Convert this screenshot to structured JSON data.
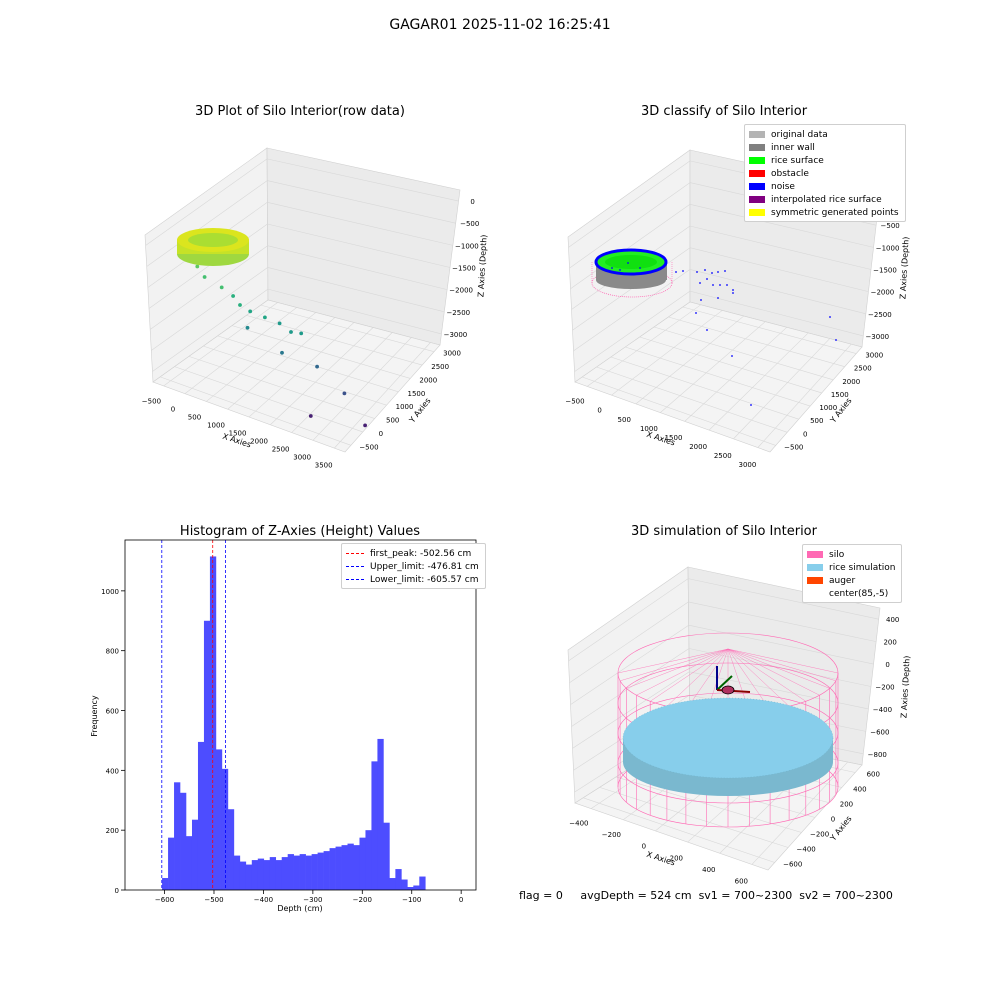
{
  "figure_title": "GAGAR01 2025-11-02 16:25:41",
  "footer": {
    "flag": "flag = 0",
    "avg_depth": "avgDepth = 524 cm",
    "sv1": "sv1 = 700~2300",
    "sv2": "sv2 = 700~2300"
  },
  "chart_data": [
    {
      "type": "scatter",
      "title": "3D Plot of Silo Interior(row data)",
      "xlabel": "X Axies",
      "ylabel": "Y Axies",
      "zlabel": "Z Axies (Depth)",
      "x_ticks": [
        "−500",
        "0",
        "500",
        "1000",
        "1500",
        "2000",
        "2500",
        "3000",
        "3500"
      ],
      "y_ticks": [
        "−500",
        "0",
        "500",
        "1000",
        "1500",
        "2000",
        "2500",
        "3000"
      ],
      "z_ticks": [
        "0",
        "−500",
        "−1000",
        "−1500",
        "−2000",
        "−2500",
        "−3000"
      ],
      "points": [
        [
          250,
          2750,
          -600
        ],
        [
          400,
          2700,
          -800
        ],
        [
          700,
          2400,
          -900
        ],
        [
          900,
          2200,
          -1000
        ],
        [
          1000,
          2000,
          -1100
        ],
        [
          1200,
          1900,
          -1200
        ],
        [
          1500,
          1800,
          -1300
        ],
        [
          1800,
          1700,
          -1400
        ],
        [
          2000,
          1500,
          -1500
        ],
        [
          2200,
          1400,
          -1500
        ],
        [
          1300,
          2500,
          -1800
        ],
        [
          1800,
          1500,
          -1900
        ],
        [
          2500,
          1200,
          -2100
        ],
        [
          3000,
          800,
          -2500
        ],
        [
          2200,
          600,
          -2800
        ],
        [
          3300,
          200,
          -2900
        ]
      ]
    },
    {
      "type": "scatter",
      "title": "3D classify of Silo Interior",
      "xlabel": "X Axies",
      "ylabel": "Y Axies",
      "zlabel": "Z Axies (Depth)",
      "x_ticks": [
        "−500",
        "0",
        "500",
        "1000",
        "1500",
        "2000",
        "2500",
        "3000"
      ],
      "y_ticks": [
        "−500",
        "0",
        "500",
        "1000",
        "1500",
        "2000",
        "2500",
        "3000"
      ],
      "z_ticks": [
        "0",
        "−500",
        "−1000",
        "−1500",
        "−2000",
        "−2500",
        "−3000"
      ],
      "legend": [
        {
          "label": "original data",
          "color": "#b4b4b4"
        },
        {
          "label": "inner wall",
          "color": "#808080"
        },
        {
          "label": "rice surface",
          "color": "#00ff00"
        },
        {
          "label": "obstacle",
          "color": "#ff0000"
        },
        {
          "label": "noise",
          "color": "#0000ff"
        },
        {
          "label": "interpolated rice surface",
          "color": "#800080"
        },
        {
          "label": "symmetric generated points",
          "color": "#ffff00"
        }
      ]
    },
    {
      "type": "bar",
      "title": "Histogram of Z-Axies (Height) Values",
      "xlabel": "Depth (cm)",
      "ylabel": "Frequency",
      "xlim": [
        -680,
        30
      ],
      "ylim": [
        0,
        1170
      ],
      "x_ticks": [
        "−600",
        "−500",
        "−400",
        "−300",
        "−200",
        "−100",
        "0"
      ],
      "y_ticks": [
        "0",
        "200",
        "400",
        "600",
        "800",
        "1000"
      ],
      "bin_start": -605,
      "bin_width": 12.1,
      "values": [
        40,
        175,
        360,
        325,
        180,
        235,
        495,
        900,
        1115,
        470,
        405,
        270,
        115,
        95,
        85,
        100,
        105,
        100,
        110,
        100,
        110,
        120,
        115,
        120,
        115,
        120,
        125,
        130,
        140,
        145,
        150,
        155,
        150,
        175,
        200,
        430,
        505,
        225,
        40,
        70,
        35,
        10,
        15,
        45
      ],
      "lines": [
        {
          "label": "first_peak: -502.56 cm",
          "x": -502.56,
          "color": "#ff0000"
        },
        {
          "label": "Upper_limit: -476.81 cm",
          "x": -476.81,
          "color": "#0000ff"
        },
        {
          "label": "Lower_limit: -605.57 cm",
          "x": -605.57,
          "color": "#0000ff"
        }
      ]
    },
    {
      "type": "scatter",
      "title": "3D simulation of Silo Interior",
      "xlabel": "X Axies",
      "ylabel": "Y Axies",
      "zlabel": "Z Axies (Depth)",
      "x_ticks": [
        "−400",
        "−200",
        "0",
        "200",
        "400",
        "600"
      ],
      "y_ticks": [
        "−600",
        "−400",
        "−200",
        "0",
        "200",
        "400",
        "600"
      ],
      "z_ticks": [
        "400",
        "200",
        "0",
        "−200",
        "−400",
        "−600",
        "−800"
      ],
      "legend": [
        {
          "label": "silo",
          "color": "#ff69b4"
        },
        {
          "label": "rice simulation",
          "color": "#87ceeb"
        },
        {
          "label": "auger",
          "color": "#ff4500"
        },
        {
          "label": "center(85,-5)",
          "color": ""
        }
      ]
    }
  ]
}
